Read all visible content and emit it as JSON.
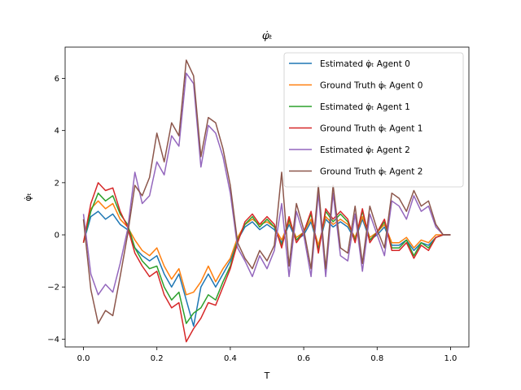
{
  "chart_data": {
    "type": "line",
    "title": "φ̇ₜ",
    "xlabel": "T",
    "ylabel": "φ̇ₜ",
    "xlim": [
      -0.05,
      1.05
    ],
    "ylim": [
      -4.3,
      7.2
    ],
    "xticks": [
      0.0,
      0.2,
      0.4,
      0.6,
      0.8,
      1.0
    ],
    "xtick_labels": [
      "0.0",
      "0.2",
      "0.4",
      "0.6",
      "0.8",
      "1.0"
    ],
    "yticks": [
      -4,
      -2,
      0,
      2,
      4,
      6
    ],
    "ytick_labels": [
      "−4",
      "−2",
      "0",
      "2",
      "4",
      "6"
    ],
    "grid": false,
    "legend_position": "top-right",
    "series": [
      {
        "name": "Estimated φ̇ₜ Agent 0",
        "color": "#1f77b4",
        "x": [
          0.0,
          0.02,
          0.04,
          0.06,
          0.08,
          0.1,
          0.12,
          0.14,
          0.16,
          0.18,
          0.2,
          0.22,
          0.24,
          0.26,
          0.28,
          0.3,
          0.32,
          0.34,
          0.36,
          0.38,
          0.4,
          0.42,
          0.44,
          0.46,
          0.48,
          0.5,
          0.52,
          0.54,
          0.56,
          0.58,
          0.6,
          0.62,
          0.64,
          0.66,
          0.68,
          0.7,
          0.72,
          0.74,
          0.76,
          0.78,
          0.8,
          0.82,
          0.84,
          0.86,
          0.88,
          0.9,
          0.92,
          0.94,
          0.96,
          0.98,
          1.0
        ],
        "y": [
          -0.3,
          0.7,
          0.9,
          0.6,
          0.8,
          0.4,
          0.2,
          -0.5,
          -0.8,
          -1.0,
          -0.8,
          -1.5,
          -2.0,
          -1.5,
          -2.5,
          -3.5,
          -2.0,
          -1.5,
          -2.0,
          -1.5,
          -1.0,
          -0.2,
          0.3,
          0.5,
          0.2,
          0.4,
          0.2,
          -0.3,
          0.4,
          -0.2,
          0.0,
          0.5,
          -0.5,
          0.6,
          0.3,
          0.5,
          0.3,
          -0.2,
          0.6,
          -0.2,
          0.0,
          0.3,
          -0.4,
          -0.4,
          -0.2,
          -0.6,
          -0.3,
          -0.4,
          -0.1,
          0.0,
          0.0
        ]
      },
      {
        "name": "Ground Truth φ̇ₜ Agent 0",
        "color": "#ff7f0e",
        "x": [
          0.0,
          0.02,
          0.04,
          0.06,
          0.08,
          0.1,
          0.12,
          0.14,
          0.16,
          0.18,
          0.2,
          0.22,
          0.24,
          0.26,
          0.28,
          0.3,
          0.32,
          0.34,
          0.36,
          0.38,
          0.4,
          0.42,
          0.44,
          0.46,
          0.48,
          0.5,
          0.52,
          0.54,
          0.56,
          0.58,
          0.6,
          0.62,
          0.64,
          0.66,
          0.68,
          0.7,
          0.72,
          0.74,
          0.76,
          0.78,
          0.8,
          0.82,
          0.84,
          0.86,
          0.88,
          0.9,
          0.92,
          0.94,
          0.96,
          0.98,
          1.0
        ],
        "y": [
          -0.3,
          1.0,
          1.3,
          1.0,
          1.2,
          0.6,
          0.3,
          -0.2,
          -0.6,
          -0.8,
          -0.5,
          -1.2,
          -1.7,
          -1.3,
          -2.3,
          -2.2,
          -1.8,
          -1.2,
          -1.8,
          -1.3,
          -0.9,
          -0.1,
          0.4,
          0.6,
          0.4,
          0.5,
          0.3,
          -0.2,
          0.5,
          -0.1,
          0.1,
          0.6,
          -0.4,
          0.7,
          0.4,
          0.6,
          0.4,
          -0.1,
          0.7,
          -0.1,
          0.1,
          0.4,
          -0.3,
          -0.3,
          -0.1,
          -0.5,
          -0.2,
          -0.3,
          0.0,
          0.0,
          0.0
        ]
      },
      {
        "name": "Estimated φ̇ₜ Agent 1",
        "color": "#2ca02c",
        "x": [
          0.0,
          0.02,
          0.04,
          0.06,
          0.08,
          0.1,
          0.12,
          0.14,
          0.16,
          0.18,
          0.2,
          0.22,
          0.24,
          0.26,
          0.28,
          0.3,
          0.32,
          0.34,
          0.36,
          0.38,
          0.4,
          0.42,
          0.44,
          0.46,
          0.48,
          0.5,
          0.52,
          0.54,
          0.56,
          0.58,
          0.6,
          0.62,
          0.64,
          0.66,
          0.68,
          0.7,
          0.72,
          0.74,
          0.76,
          0.78,
          0.8,
          0.82,
          0.84,
          0.86,
          0.88,
          0.9,
          0.92,
          0.94,
          0.96,
          0.98,
          1.0
        ],
        "y": [
          -0.3,
          0.9,
          1.6,
          1.3,
          1.5,
          0.8,
          0.4,
          -0.5,
          -1.0,
          -1.3,
          -1.2,
          -2.0,
          -2.5,
          -2.2,
          -3.4,
          -3.0,
          -2.8,
          -2.3,
          -2.5,
          -1.8,
          -1.2,
          -0.2,
          0.4,
          0.7,
          0.3,
          0.6,
          0.3,
          -0.4,
          0.6,
          -0.2,
          0.1,
          0.8,
          -0.6,
          0.9,
          0.5,
          0.8,
          0.5,
          -0.2,
          0.9,
          -0.2,
          0.1,
          0.5,
          -0.5,
          -0.5,
          -0.2,
          -0.8,
          -0.3,
          -0.5,
          -0.1,
          0.0,
          0.0
        ]
      },
      {
        "name": "Ground Truth φ̇ₜ Agent 1",
        "color": "#d62728",
        "x": [
          0.0,
          0.02,
          0.04,
          0.06,
          0.08,
          0.1,
          0.12,
          0.14,
          0.16,
          0.18,
          0.2,
          0.22,
          0.24,
          0.26,
          0.28,
          0.3,
          0.32,
          0.34,
          0.36,
          0.38,
          0.4,
          0.42,
          0.44,
          0.46,
          0.48,
          0.5,
          0.52,
          0.54,
          0.56,
          0.58,
          0.6,
          0.62,
          0.64,
          0.66,
          0.68,
          0.7,
          0.72,
          0.74,
          0.76,
          0.78,
          0.8,
          0.82,
          0.84,
          0.86,
          0.88,
          0.9,
          0.92,
          0.94,
          0.96,
          0.98,
          1.0
        ],
        "y": [
          -0.3,
          1.2,
          2.0,
          1.7,
          1.8,
          0.9,
          0.3,
          -0.7,
          -1.2,
          -1.6,
          -1.4,
          -2.3,
          -2.8,
          -2.6,
          -4.1,
          -3.6,
          -3.2,
          -2.6,
          -2.7,
          -2.0,
          -1.3,
          -0.3,
          0.5,
          0.8,
          0.4,
          0.7,
          0.4,
          -0.5,
          0.7,
          -0.3,
          0.1,
          0.9,
          -0.7,
          1.0,
          0.6,
          0.9,
          0.6,
          -0.3,
          1.0,
          -0.3,
          0.1,
          0.6,
          -0.6,
          -0.6,
          -0.3,
          -0.9,
          -0.4,
          -0.6,
          -0.1,
          0.0,
          0.0
        ]
      },
      {
        "name": "Estimated φ̇ₜ Agent 2",
        "color": "#9467bd",
        "x": [
          0.0,
          0.02,
          0.04,
          0.06,
          0.08,
          0.1,
          0.12,
          0.14,
          0.16,
          0.18,
          0.2,
          0.22,
          0.24,
          0.26,
          0.28,
          0.3,
          0.32,
          0.34,
          0.36,
          0.38,
          0.4,
          0.42,
          0.44,
          0.46,
          0.48,
          0.5,
          0.52,
          0.54,
          0.56,
          0.58,
          0.6,
          0.62,
          0.64,
          0.66,
          0.68,
          0.7,
          0.72,
          0.74,
          0.76,
          0.78,
          0.8,
          0.82,
          0.84,
          0.86,
          0.88,
          0.9,
          0.92,
          0.94,
          0.96,
          0.98,
          1.0
        ],
        "y": [
          0.8,
          -1.5,
          -2.3,
          -1.9,
          -2.2,
          -1.1,
          0.2,
          2.4,
          1.2,
          1.5,
          2.8,
          2.3,
          3.8,
          3.4,
          6.2,
          5.8,
          2.6,
          4.2,
          3.9,
          3.0,
          1.6,
          -0.5,
          -1.0,
          -1.6,
          -0.8,
          -1.3,
          -0.6,
          1.2,
          -1.6,
          0.9,
          0.0,
          -1.6,
          1.6,
          -1.6,
          1.6,
          -0.8,
          -1.0,
          0.8,
          -1.4,
          0.8,
          0.0,
          -0.8,
          1.3,
          1.1,
          0.6,
          1.5,
          0.9,
          1.1,
          0.3,
          0.0,
          0.0
        ]
      },
      {
        "name": "Ground Truth φ̇ₜ Agent 2",
        "color": "#8c564b",
        "x": [
          0.0,
          0.02,
          0.04,
          0.06,
          0.08,
          0.1,
          0.12,
          0.14,
          0.16,
          0.18,
          0.2,
          0.22,
          0.24,
          0.26,
          0.28,
          0.3,
          0.32,
          0.34,
          0.36,
          0.38,
          0.4,
          0.42,
          0.44,
          0.46,
          0.48,
          0.5,
          0.52,
          0.54,
          0.56,
          0.58,
          0.6,
          0.62,
          0.64,
          0.66,
          0.68,
          0.7,
          0.72,
          0.74,
          0.76,
          0.78,
          0.8,
          0.82,
          0.84,
          0.86,
          0.88,
          0.9,
          0.92,
          0.94,
          0.96,
          0.98,
          1.0
        ],
        "y": [
          0.6,
          -2.1,
          -3.4,
          -2.9,
          -3.1,
          -1.6,
          0.0,
          1.9,
          1.5,
          2.2,
          3.9,
          2.8,
          4.3,
          3.8,
          6.7,
          6.1,
          3.0,
          4.5,
          4.3,
          3.3,
          1.9,
          -0.3,
          -0.9,
          -1.3,
          -0.6,
          -1.0,
          -0.4,
          2.4,
          -1.2,
          1.2,
          0.2,
          -1.3,
          1.9,
          -1.3,
          1.9,
          -0.5,
          -0.7,
          1.1,
          -1.1,
          1.1,
          0.2,
          -0.5,
          1.6,
          1.4,
          0.9,
          1.7,
          1.1,
          1.3,
          0.4,
          0.0,
          0.0
        ]
      }
    ]
  }
}
